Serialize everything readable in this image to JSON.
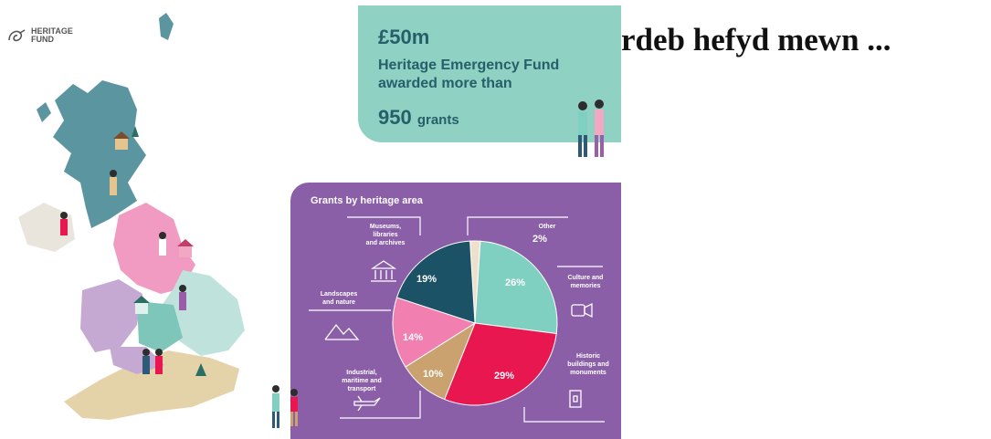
{
  "logo": {
    "line1": "HERITAGE",
    "line2": "FUND"
  },
  "headline": "rdeb hefyd mewn ...",
  "emergency_card": {
    "amount": "£50m",
    "desc_line1": "Heritage Emergency Fund",
    "desc_line2": "awarded more than",
    "grants_number": "950",
    "grants_unit": "grants"
  },
  "chart_data": {
    "type": "pie",
    "title": "Grants by heritage area",
    "slices": [
      {
        "label": "Other",
        "value": 2,
        "display": "2%",
        "color": "#efe0cc"
      },
      {
        "label": "Culture and memories",
        "value": 26,
        "display": "26%",
        "color": "#7fd0c0"
      },
      {
        "label": "Historic buildings and monuments",
        "value": 29,
        "display": "29%",
        "color": "#e8174f"
      },
      {
        "label": "Industrial, maritime and transport",
        "value": 10,
        "display": "10%",
        "color": "#c9a270"
      },
      {
        "label": "Landscapes and nature",
        "value": 14,
        "display": "14%",
        "color": "#f17fb0"
      },
      {
        "label": "Museums, libraries and archives",
        "value": 19,
        "display": "19%",
        "color": "#1c5266"
      }
    ],
    "labels": {
      "museums": [
        "Museums,",
        "libraries",
        "and archives"
      ],
      "other": "Other",
      "culture": [
        "Culture and",
        "memories"
      ],
      "landscapes": [
        "Landscapes",
        "and nature"
      ],
      "industrial": [
        "Industrial,",
        "maritime and",
        "transport"
      ],
      "historic": [
        "Historic",
        "buildings and",
        "monuments"
      ]
    }
  }
}
